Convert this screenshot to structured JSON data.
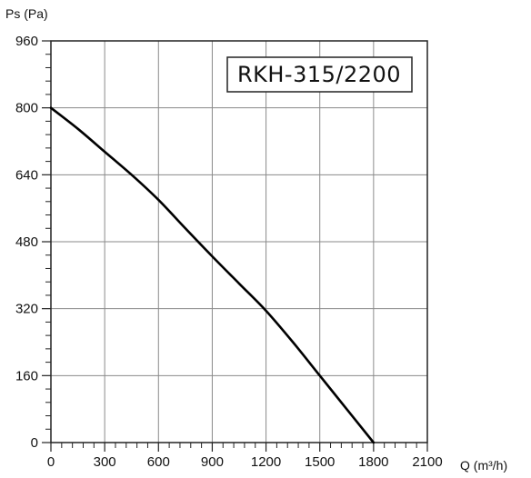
{
  "chart_data": {
    "type": "line",
    "title": "RKH-315/2200",
    "xlabel": "Q (m³/h)",
    "ylabel": "Ps (Pa)",
    "xlim": [
      0,
      2100
    ],
    "ylim": [
      0,
      960
    ],
    "xticks": [
      0,
      300,
      600,
      900,
      1200,
      1500,
      1800,
      2100
    ],
    "yticks": [
      0,
      160,
      320,
      480,
      640,
      800,
      960
    ],
    "grid": true,
    "series": [
      {
        "x": [
          0,
          150,
          300,
          450,
          600,
          750,
          900,
          1050,
          1200,
          1350,
          1500,
          1650,
          1800
        ],
        "y": [
          800,
          750,
          695,
          640,
          580,
          512,
          445,
          380,
          315,
          240,
          160,
          80,
          0
        ]
      }
    ]
  }
}
